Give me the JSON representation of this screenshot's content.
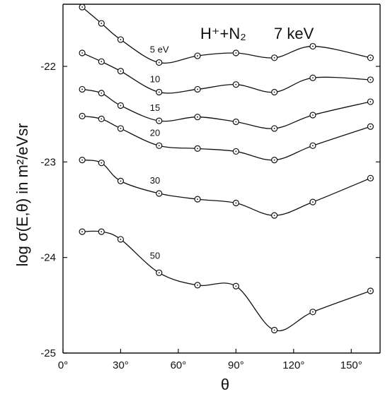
{
  "chart_data": {
    "type": "line",
    "title": "H⁺+N₂  7 keV",
    "title_parts": {
      "reaction": "H⁺+N₂",
      "energy": "7 keV"
    },
    "xlabel": "θ",
    "ylabel": "log σ(E,θ) in m²/eVsr",
    "xlim": [
      0,
      165
    ],
    "ylim": [
      -25,
      -21.35
    ],
    "x_ticks": [
      0,
      30,
      60,
      90,
      120,
      150
    ],
    "x_tick_labels": [
      "0°",
      "30°",
      "60°",
      "90°",
      "120°",
      "150°"
    ],
    "y_ticks": [
      -22,
      -23,
      -24,
      -25
    ],
    "y_tick_labels": [
      "-22",
      "-23",
      "-24",
      "-25"
    ],
    "grid": false,
    "series": [
      {
        "name": "5 eV",
        "x": [
          10,
          20,
          30,
          50,
          70,
          90,
          110,
          130,
          160
        ],
        "values": [
          -21.38,
          -21.55,
          -21.72,
          -21.96,
          -21.89,
          -21.86,
          -21.91,
          -21.79,
          -21.91
        ]
      },
      {
        "name": "10",
        "x": [
          10,
          20,
          30,
          50,
          70,
          90,
          110,
          130,
          160
        ],
        "values": [
          -21.86,
          -21.95,
          -22.05,
          -22.27,
          -22.24,
          -22.19,
          -22.27,
          -22.12,
          -22.14
        ]
      },
      {
        "name": "15",
        "x": [
          10,
          20,
          30,
          50,
          70,
          90,
          110,
          130,
          160
        ],
        "values": [
          -22.24,
          -22.28,
          -22.41,
          -22.57,
          -22.53,
          -22.58,
          -22.65,
          -22.51,
          -22.37
        ]
      },
      {
        "name": "20",
        "x": [
          10,
          20,
          30,
          50,
          70,
          90,
          110,
          130,
          160
        ],
        "values": [
          -22.52,
          -22.55,
          -22.65,
          -22.83,
          -22.86,
          -22.89,
          -22.98,
          -22.83,
          -22.63
        ]
      },
      {
        "name": "30",
        "x": [
          10,
          20,
          30,
          50,
          70,
          90,
          110,
          130,
          160
        ],
        "values": [
          -22.98,
          -23.01,
          -23.2,
          -23.33,
          -23.39,
          -23.43,
          -23.56,
          -23.42,
          -23.17
        ]
      },
      {
        "name": "50",
        "x": [
          10,
          20,
          30,
          50,
          70,
          90,
          110,
          130,
          160
        ],
        "values": [
          -23.73,
          -23.73,
          -23.81,
          -24.16,
          -24.29,
          -24.3,
          -24.76,
          -24.57,
          -24.35
        ]
      }
    ]
  }
}
